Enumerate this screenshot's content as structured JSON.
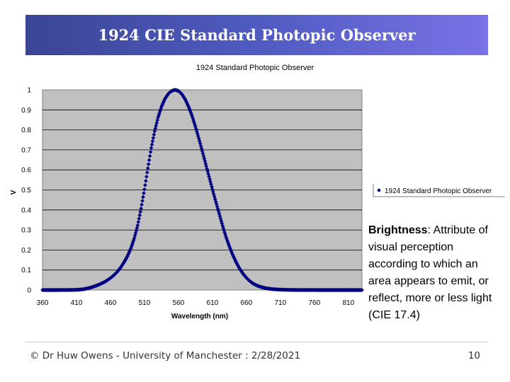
{
  "slide": {
    "title": "1924 CIE Standard Photopic Observer",
    "footer": "© Dr Huw Owens - University of Manchester : 2/28/2021",
    "page_number": "10"
  },
  "description": {
    "term": "Brightness",
    "definition": ":  Attribute of visual perception according to which an area appears to emit, or reflect, more or less light (CIE 17.4)"
  },
  "colors": {
    "title_gradient_start": "#3b4594",
    "title_gradient_end": "#7a72e6",
    "plot_bg": "#c0c0c0",
    "series": "#000080"
  },
  "chart_data": {
    "type": "scatter",
    "title": "1924 Standard Photopic Observer",
    "xlabel": "Wavelength (nm)",
    "ylabel": "V",
    "xlim": [
      360,
      830
    ],
    "ylim": [
      0,
      1
    ],
    "x_ticks": [
      "360",
      "410",
      "460",
      "510",
      "560",
      "610",
      "660",
      "710",
      "760",
      "810"
    ],
    "y_ticks": [
      "0",
      "0.1",
      "0.2",
      "0.3",
      "0.4",
      "0.5",
      "0.6",
      "0.7",
      "0.8",
      "0.9",
      "1"
    ],
    "series": [
      {
        "name": "1924 Standard Photopic Observer",
        "x": [
          360,
          365,
          370,
          375,
          380,
          385,
          390,
          395,
          400,
          405,
          410,
          415,
          420,
          425,
          430,
          435,
          440,
          445,
          450,
          455,
          460,
          465,
          470,
          475,
          480,
          485,
          490,
          495,
          500,
          505,
          510,
          515,
          520,
          525,
          530,
          535,
          540,
          545,
          550,
          555,
          560,
          565,
          570,
          575,
          580,
          585,
          590,
          595,
          600,
          605,
          610,
          615,
          620,
          625,
          630,
          635,
          640,
          645,
          650,
          655,
          660,
          665,
          670,
          675,
          680,
          685,
          690,
          695,
          700,
          705,
          710,
          715,
          720,
          725,
          730,
          735,
          740,
          745,
          750,
          755,
          760,
          765,
          770,
          775,
          780,
          785,
          790,
          795,
          800,
          805,
          810,
          815,
          820,
          825,
          830
        ],
        "y": [
          3.9e-06,
          7e-06,
          1.2e-05,
          2.2e-05,
          3.9e-05,
          6.4e-05,
          0.00012,
          0.00022,
          0.000396,
          0.00064,
          0.00121,
          0.00218,
          0.004,
          0.0073,
          0.0116,
          0.01684,
          0.023,
          0.0298,
          0.038,
          0.048,
          0.06,
          0.0739,
          0.09098,
          0.1126,
          0.13902,
          0.1693,
          0.20802,
          0.2586,
          0.323,
          0.4073,
          0.503,
          0.6082,
          0.71,
          0.7932,
          0.862,
          0.91485,
          0.954,
          0.9803,
          0.99495,
          1.0,
          0.995,
          0.9786,
          0.952,
          0.9154,
          0.87,
          0.8163,
          0.757,
          0.6949,
          0.631,
          0.5668,
          0.503,
          0.4412,
          0.381,
          0.321,
          0.265,
          0.217,
          0.175,
          0.1382,
          0.107,
          0.0816,
          0.061,
          0.04458,
          0.032,
          0.0232,
          0.017,
          0.01192,
          0.00821,
          0.005723,
          0.004102,
          0.002929,
          0.002091,
          0.001484,
          0.001047,
          0.00074,
          0.00052,
          0.000361,
          0.000249,
          0.000172,
          0.00012,
          8.48e-05,
          6e-05,
          4.24e-05,
          3e-05,
          2.12e-05,
          1.5e-05,
          1.06e-05,
          7.5e-06,
          5.3e-06,
          3.7e-06,
          2.6e-06,
          1.9e-06,
          1.3e-06,
          9e-07,
          7e-07,
          5e-07
        ]
      }
    ]
  }
}
